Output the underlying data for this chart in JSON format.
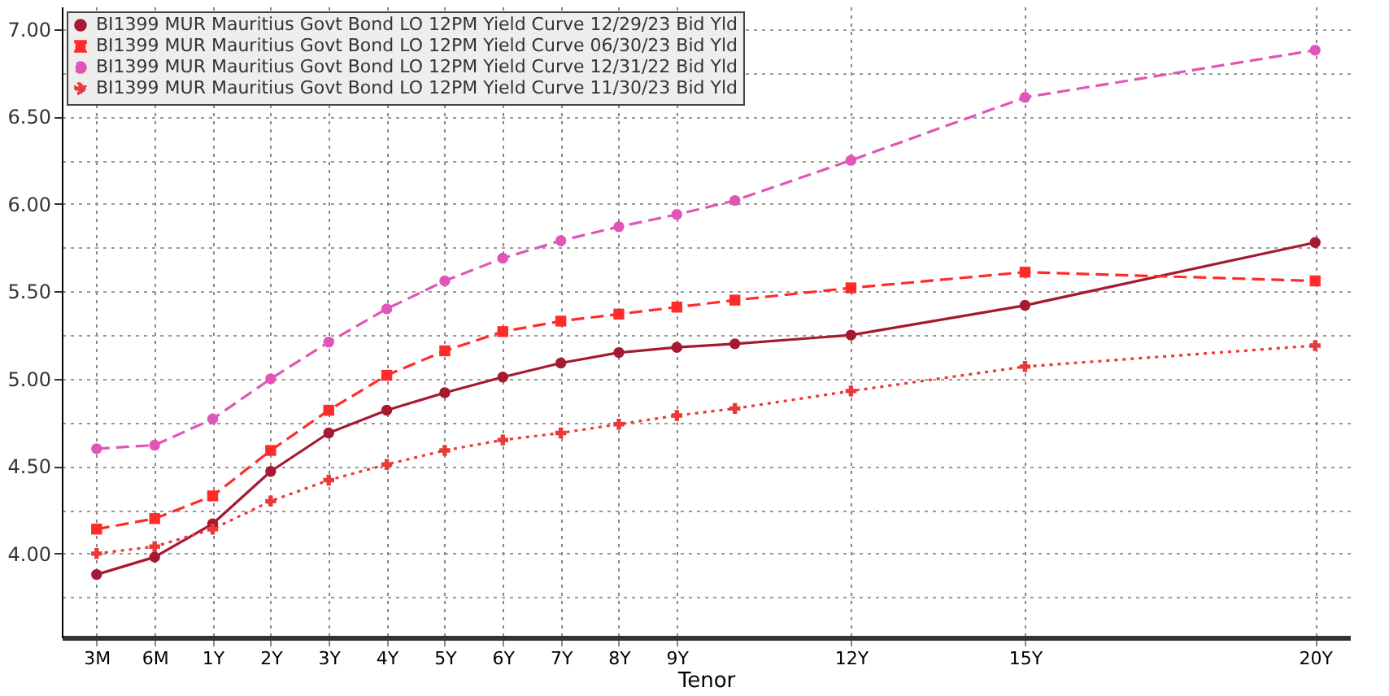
{
  "chart_data": {
    "type": "line",
    "xlabel": "Tenor",
    "categories": [
      "3M",
      "6M",
      "1Y",
      "2Y",
      "3Y",
      "4Y",
      "5Y",
      "6Y",
      "7Y",
      "8Y",
      "9Y",
      null,
      null,
      "12Y",
      null,
      null,
      "15Y",
      null,
      null,
      null,
      null,
      "20Y"
    ],
    "series": [
      {
        "name": "BI1399 MUR Mauritius Govt Bond LO 12PM Yield Curve 12/29/23 Bid Yld",
        "color": "#a51a30",
        "marker": "circle",
        "line_style": "solid",
        "values": [
          3.88,
          3.98,
          4.17,
          4.47,
          4.69,
          4.82,
          4.92,
          5.01,
          5.09,
          5.15,
          5.18,
          5.2,
          null,
          5.25,
          null,
          null,
          5.42,
          null,
          null,
          null,
          null,
          5.78
        ]
      },
      {
        "name": "BI1399 MUR Mauritius Govt Bond LO 12PM Yield Curve 06/30/23 Bid Yld",
        "color": "#ff2b2b",
        "marker": "square",
        "line_style": "dashed",
        "values": [
          4.14,
          4.2,
          4.33,
          4.59,
          4.82,
          5.02,
          5.16,
          5.27,
          5.33,
          5.37,
          5.41,
          5.45,
          null,
          5.52,
          null,
          null,
          5.61,
          null,
          null,
          null,
          null,
          5.56
        ]
      },
      {
        "name": "BI1399 MUR Mauritius Govt Bond LO 12PM Yield Curve 12/31/22 Bid Yld",
        "color": "#e055b8",
        "marker": "circle",
        "line_style": "dashed",
        "values": [
          4.6,
          4.62,
          4.77,
          5.0,
          5.21,
          5.4,
          5.56,
          5.69,
          5.79,
          5.87,
          5.94,
          6.02,
          null,
          6.25,
          null,
          null,
          6.61,
          null,
          null,
          null,
          null,
          6.88
        ]
      },
      {
        "name": "BI1399 MUR Mauritius Govt Bond LO 12PM Yield Curve 11/30/23 Bid Yld",
        "color": "#e83a3a",
        "marker": "cross",
        "line_style": "dotted",
        "values": [
          4.0,
          4.04,
          4.14,
          4.3,
          4.42,
          4.51,
          4.59,
          4.65,
          4.69,
          4.74,
          4.79,
          4.83,
          null,
          4.93,
          null,
          null,
          5.07,
          null,
          null,
          null,
          null,
          5.19
        ]
      }
    ],
    "ylim": [
      3.52,
      7.13
    ],
    "yticks": [
      {
        "value": 3.75,
        "label": null
      },
      {
        "value": 4,
        "label": "4.00"
      },
      {
        "value": 4.25,
        "label": null
      },
      {
        "value": 4.5,
        "label": "4.50"
      },
      {
        "value": 4.75,
        "label": null
      },
      {
        "value": 5,
        "label": "5.00"
      },
      {
        "value": 5.25,
        "label": null
      },
      {
        "value": 5.5,
        "label": "5.50"
      },
      {
        "value": 5.75,
        "label": null
      },
      {
        "value": 6,
        "label": "6.00"
      },
      {
        "value": 6.25,
        "label": null
      },
      {
        "value": 6.5,
        "label": "6.50"
      },
      {
        "value": 6.75,
        "label": null
      },
      {
        "value": 7,
        "label": "7.00"
      }
    ],
    "grid": true,
    "legend": "top left"
  }
}
